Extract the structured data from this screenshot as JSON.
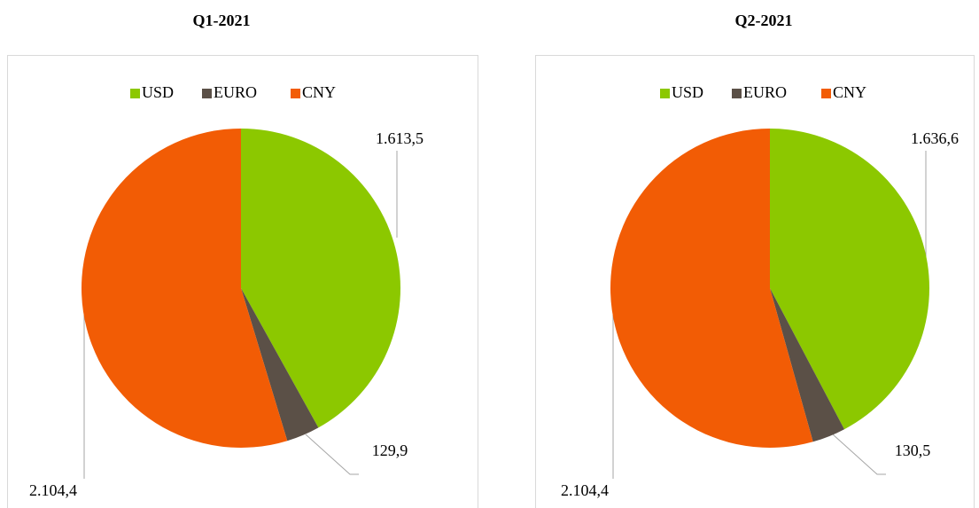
{
  "chart_data": [
    {
      "type": "pie",
      "title": "Q1-2021",
      "categories": [
        "USD",
        "EURO",
        "CNY"
      ],
      "values": [
        1613.5,
        129.9,
        2104.4
      ],
      "value_labels": [
        "1.613,5",
        "129,9",
        "2.104,4"
      ],
      "colors": [
        "#8cc800",
        "#5b5047",
        "#f25c05"
      ]
    },
    {
      "type": "pie",
      "title": "Q2-2021",
      "categories": [
        "USD",
        "EURO",
        "CNY"
      ],
      "values": [
        1636.6,
        130.5,
        2104.4
      ],
      "value_labels": [
        "1.636,6",
        "130,5",
        "2.104,4"
      ],
      "colors": [
        "#8cc800",
        "#5b5047",
        "#f25c05"
      ]
    }
  ]
}
